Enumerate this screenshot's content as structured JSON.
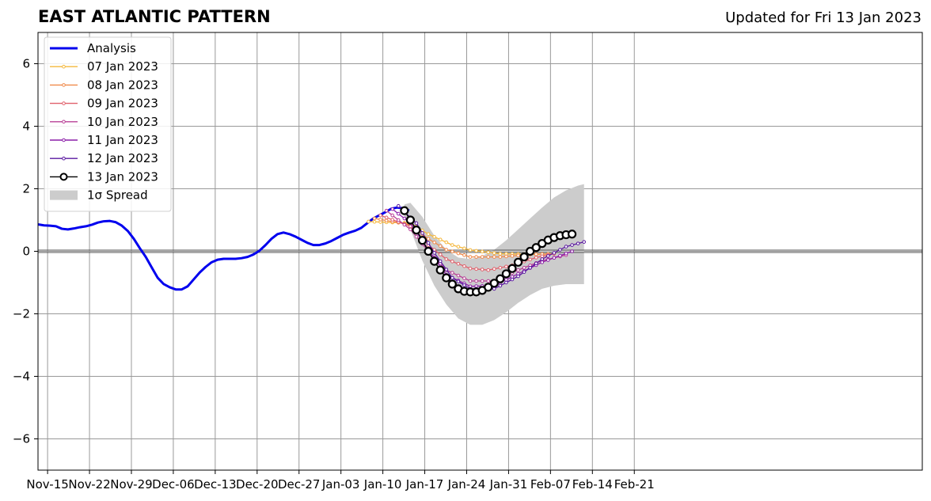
{
  "header": {
    "title": "EAST ATLANTIC PATTERN",
    "updated": "Updated for Fri 13 Jan 2023"
  },
  "colors": {
    "analysis": "#0000ee",
    "spread": "#cccccc",
    "grid": "#999999",
    "zero": "#555555"
  },
  "chart_data": {
    "type": "line",
    "title": "EAST ATLANTIC PATTERN",
    "xlabel": "",
    "ylabel": "",
    "x_unit": "days since 2022-11-15",
    "xlim": [
      -1.6,
      146.1
    ],
    "ylim": [
      -7,
      7
    ],
    "grid": true,
    "legend": "upper-left",
    "x_ticks": [
      {
        "label": "Nov-15",
        "day": 0
      },
      {
        "label": "Nov-22",
        "day": 7
      },
      {
        "label": "Nov-29",
        "day": 14
      },
      {
        "label": "Dec-06",
        "day": 21
      },
      {
        "label": "Dec-13",
        "day": 28
      },
      {
        "label": "Dec-20",
        "day": 35
      },
      {
        "label": "Dec-27",
        "day": 42
      },
      {
        "label": "Jan-03",
        "day": 49
      },
      {
        "label": "Jan-10",
        "day": 56
      },
      {
        "label": "Jan-17",
        "day": 63
      },
      {
        "label": "Jan-24",
        "day": 70
      },
      {
        "label": "Jan-31",
        "day": 77
      },
      {
        "label": "Feb-07",
        "day": 84
      },
      {
        "label": "Feb-14",
        "day": 91
      },
      {
        "label": "Feb-21",
        "day": 98
      }
    ],
    "y_ticks": [
      {
        "label": "6",
        "value": 6
      },
      {
        "label": "4",
        "value": 4
      },
      {
        "label": "2",
        "value": 2
      },
      {
        "label": "0",
        "value": 0
      },
      {
        "label": "−2",
        "value": -2
      },
      {
        "label": "−4",
        "value": -4
      },
      {
        "label": "−6",
        "value": -6
      }
    ],
    "analysis": {
      "name": "Analysis",
      "color": "#0000ee",
      "points": [
        [
          -1.6,
          0.86
        ],
        [
          -0.6,
          0.83
        ],
        [
          0.4,
          0.82
        ],
        [
          1.4,
          0.8
        ],
        [
          2.4,
          0.72
        ],
        [
          3.4,
          0.7
        ],
        [
          4.4,
          0.73
        ],
        [
          5.4,
          0.77
        ],
        [
          6.4,
          0.8
        ],
        [
          7.4,
          0.85
        ],
        [
          8.4,
          0.92
        ],
        [
          9.4,
          0.96
        ],
        [
          10.4,
          0.97
        ],
        [
          11.4,
          0.93
        ],
        [
          12.4,
          0.82
        ],
        [
          13.4,
          0.65
        ],
        [
          14.4,
          0.4
        ],
        [
          15.4,
          0.1
        ],
        [
          16.4,
          -0.18
        ],
        [
          17.4,
          -0.52
        ],
        [
          18.4,
          -0.85
        ],
        [
          19.4,
          -1.05
        ],
        [
          20.4,
          -1.15
        ],
        [
          21.4,
          -1.22
        ],
        [
          22.4,
          -1.22
        ],
        [
          23.4,
          -1.12
        ],
        [
          24.4,
          -0.9
        ],
        [
          25.4,
          -0.68
        ],
        [
          26.4,
          -0.5
        ],
        [
          27.4,
          -0.35
        ],
        [
          28.4,
          -0.27
        ],
        [
          29.4,
          -0.24
        ],
        [
          30.4,
          -0.24
        ],
        [
          31.4,
          -0.24
        ],
        [
          32.4,
          -0.22
        ],
        [
          33.4,
          -0.18
        ],
        [
          34.4,
          -0.1
        ],
        [
          35.4,
          0.02
        ],
        [
          36.4,
          0.2
        ],
        [
          37.4,
          0.4
        ],
        [
          38.4,
          0.55
        ],
        [
          39.4,
          0.6
        ],
        [
          40.4,
          0.55
        ],
        [
          41.4,
          0.47
        ],
        [
          42.4,
          0.37
        ],
        [
          43.4,
          0.27
        ],
        [
          44.4,
          0.2
        ],
        [
          45.4,
          0.2
        ],
        [
          46.4,
          0.25
        ],
        [
          47.4,
          0.33
        ],
        [
          48.4,
          0.43
        ],
        [
          49.4,
          0.53
        ],
        [
          50.4,
          0.6
        ],
        [
          51.4,
          0.66
        ],
        [
          52.4,
          0.75
        ],
        [
          53.4,
          0.9
        ],
        [
          54.4,
          1.05
        ],
        [
          55.4,
          1.15
        ],
        [
          56.4,
          1.25
        ],
        [
          57.4,
          1.36
        ],
        [
          58.4,
          1.4
        ],
        [
          59.4,
          1.38
        ],
        [
          60.4,
          1.3
        ]
      ]
    },
    "forecasts": [
      {
        "name": "07 Jan 2023",
        "color": "#f5b83d",
        "marker": "small",
        "points": [
          [
            53.6,
            0.95
          ],
          [
            60.6,
            0.9
          ],
          [
            63.6,
            0.55
          ],
          [
            67.6,
            0.2
          ],
          [
            70.6,
            0.04
          ],
          [
            75.6,
            -0.08
          ],
          [
            81.6,
            -0.1
          ],
          [
            84.6,
            -0.08
          ]
        ]
      },
      {
        "name": "08 Jan 2023",
        "color": "#f08a4b",
        "marker": "small",
        "points": [
          [
            54.6,
            1.05
          ],
          [
            60.6,
            0.85
          ],
          [
            63.6,
            0.4
          ],
          [
            66.6,
            0.05
          ],
          [
            70.6,
            -0.18
          ],
          [
            75.6,
            -0.18
          ],
          [
            80.6,
            -0.1
          ],
          [
            84.6,
            -0.08
          ]
        ]
      },
      {
        "name": "09 Jan 2023",
        "color": "#e0606b",
        "marker": "small",
        "points": [
          [
            55.6,
            1.15
          ],
          [
            60.6,
            0.8
          ],
          [
            63.6,
            0.2
          ],
          [
            66.6,
            -0.25
          ],
          [
            70.6,
            -0.55
          ],
          [
            73.6,
            -0.6
          ],
          [
            77.6,
            -0.45
          ],
          [
            81.6,
            -0.2
          ],
          [
            84.6,
            -0.08
          ]
        ]
      },
      {
        "name": "10 Jan 2023",
        "color": "#b83f96",
        "marker": "small",
        "points": [
          [
            56.6,
            1.3
          ],
          [
            60.6,
            0.7
          ],
          [
            63.6,
            0.0
          ],
          [
            66.6,
            -0.6
          ],
          [
            70.6,
            -0.95
          ],
          [
            74.6,
            -0.95
          ],
          [
            78.6,
            -0.6
          ],
          [
            82.6,
            -0.3
          ],
          [
            86.6,
            -0.12
          ]
        ]
      },
      {
        "name": "11 Jan 2023",
        "color": "#8c1ea8",
        "marker": "small",
        "points": [
          [
            57.6,
            1.35
          ],
          [
            60.6,
            0.9
          ],
          [
            63.6,
            0.05
          ],
          [
            66.6,
            -0.75
          ],
          [
            70.6,
            -1.12
          ],
          [
            74.6,
            -1.1
          ],
          [
            78.6,
            -0.72
          ],
          [
            82.6,
            -0.35
          ],
          [
            87.6,
            0.0
          ]
        ]
      },
      {
        "name": "12 Jan 2023",
        "color": "#5a18a0",
        "marker": "small",
        "points": [
          [
            58.6,
            1.45
          ],
          [
            61.6,
            0.9
          ],
          [
            64.6,
            -0.05
          ],
          [
            67.6,
            -0.85
          ],
          [
            70.6,
            -1.2
          ],
          [
            74.6,
            -1.2
          ],
          [
            78.6,
            -0.8
          ],
          [
            82.6,
            -0.25
          ],
          [
            86.6,
            0.15
          ],
          [
            89.6,
            0.3
          ]
        ]
      },
      {
        "name": "13 Jan 2023",
        "color": "#000000",
        "marker": "large",
        "points": [
          [
            59.6,
            1.3
          ],
          [
            60.6,
            1.0
          ],
          [
            61.6,
            0.68
          ],
          [
            62.6,
            0.35
          ],
          [
            63.6,
            0.0
          ],
          [
            64.6,
            -0.32
          ],
          [
            65.6,
            -0.6
          ],
          [
            66.6,
            -0.85
          ],
          [
            67.6,
            -1.05
          ],
          [
            68.6,
            -1.2
          ],
          [
            69.6,
            -1.28
          ],
          [
            70.6,
            -1.3
          ],
          [
            71.6,
            -1.3
          ],
          [
            72.6,
            -1.25
          ],
          [
            73.6,
            -1.15
          ],
          [
            74.6,
            -1.02
          ],
          [
            75.6,
            -0.88
          ],
          [
            76.6,
            -0.72
          ],
          [
            77.6,
            -0.55
          ],
          [
            78.6,
            -0.35
          ],
          [
            79.6,
            -0.18
          ],
          [
            80.6,
            0.0
          ],
          [
            81.6,
            0.12
          ],
          [
            82.6,
            0.25
          ],
          [
            83.6,
            0.36
          ],
          [
            84.6,
            0.44
          ],
          [
            85.6,
            0.5
          ],
          [
            86.6,
            0.53
          ],
          [
            87.6,
            0.55
          ]
        ]
      }
    ],
    "spread": {
      "name": "1σ Spread",
      "color": "#cccccc",
      "upper": [
        [
          59.6,
          1.5
        ],
        [
          60.6,
          1.55
        ],
        [
          62.6,
          1.1
        ],
        [
          64.6,
          0.5
        ],
        [
          66.6,
          0.05
        ],
        [
          68.6,
          -0.2
        ],
        [
          70.6,
          -0.25
        ],
        [
          72.6,
          -0.15
        ],
        [
          74.6,
          0.05
        ],
        [
          76.6,
          0.35
        ],
        [
          78.6,
          0.7
        ],
        [
          80.6,
          1.05
        ],
        [
          82.6,
          1.4
        ],
        [
          84.6,
          1.72
        ],
        [
          86.6,
          1.95
        ],
        [
          88.6,
          2.1
        ],
        [
          89.6,
          2.15
        ]
      ],
      "lower": [
        [
          59.6,
          1.1
        ],
        [
          60.6,
          0.7
        ],
        [
          62.6,
          -0.3
        ],
        [
          64.6,
          -1.1
        ],
        [
          66.6,
          -1.7
        ],
        [
          68.6,
          -2.15
        ],
        [
          70.6,
          -2.35
        ],
        [
          72.6,
          -2.35
        ],
        [
          74.6,
          -2.2
        ],
        [
          76.6,
          -1.95
        ],
        [
          78.6,
          -1.65
        ],
        [
          80.6,
          -1.4
        ],
        [
          82.6,
          -1.2
        ],
        [
          84.6,
          -1.1
        ],
        [
          86.6,
          -1.05
        ],
        [
          88.6,
          -1.05
        ],
        [
          89.6,
          -1.05
        ]
      ]
    }
  }
}
